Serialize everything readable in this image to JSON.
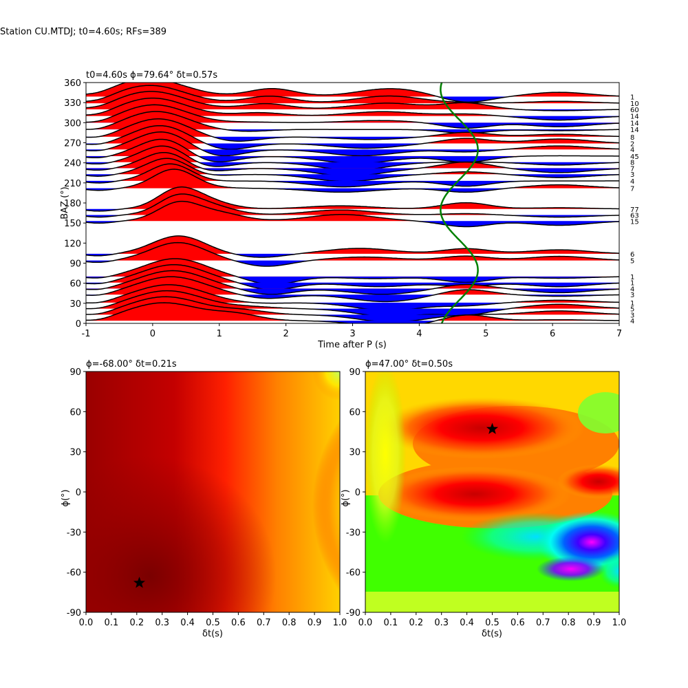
{
  "figure": {
    "suptitle": "Station CU.MTDJ; t0=4.60s; RFs=389"
  },
  "chart_data": [
    {
      "type": "line",
      "title": "t0=4.60s ϕ=79.64° δt=0.57s",
      "xlabel": "Time after P (s)",
      "ylabel": "BAZ (°)",
      "xlim": [
        -1,
        7
      ],
      "ylim": [
        0,
        360
      ],
      "xticks": [
        "-1",
        "0",
        "1",
        "2",
        "3",
        "4",
        "5",
        "6",
        "7"
      ],
      "yticks": [
        "0",
        "30",
        "60",
        "90",
        "120",
        "150",
        "180",
        "210",
        "240",
        "270",
        "300",
        "330",
        "360"
      ],
      "fill_positive_color": "#ff0000",
      "fill_negative_color": "#0000ff",
      "fitted_curve": {
        "color": "#008000",
        "description_t0": 4.6,
        "phi": 79.64,
        "dt": 0.57
      },
      "traces": [
        {
          "baz": 4,
          "count": "4"
        },
        {
          "baz": 13,
          "count": "3"
        },
        {
          "baz": 22,
          "count": "5"
        },
        {
          "baz": 31,
          "count": "1"
        },
        {
          "baz": 43,
          "count": "3"
        },
        {
          "baz": 52,
          "count": "4"
        },
        {
          "baz": 61,
          "count": "1"
        },
        {
          "baz": 70,
          "count": "1"
        },
        {
          "baz": 94,
          "count": "5"
        },
        {
          "baz": 104,
          "count": "6"
        },
        {
          "baz": 153,
          "count": "15"
        },
        {
          "baz": 162,
          "count": "63"
        },
        {
          "baz": 171,
          "count": "77"
        },
        {
          "baz": 202,
          "count": "7"
        },
        {
          "baz": 213,
          "count": "4"
        },
        {
          "baz": 223,
          "count": "3"
        },
        {
          "baz": 232,
          "count": "7"
        },
        {
          "baz": 241,
          "count": "8"
        },
        {
          "baz": 250,
          "count": "45"
        },
        {
          "baz": 260,
          "count": "4"
        },
        {
          "baz": 269,
          "count": "2"
        },
        {
          "baz": 279,
          "count": "8"
        },
        {
          "baz": 290,
          "count": "14"
        },
        {
          "baz": 300,
          "count": "14"
        },
        {
          "baz": 310,
          "count": "14"
        },
        {
          "baz": 320,
          "count": "60"
        },
        {
          "baz": 329,
          "count": "10"
        },
        {
          "baz": 339,
          "count": "1"
        }
      ]
    },
    {
      "type": "heatmap",
      "title": "ϕ=-68.00° δt=0.21s",
      "xlabel": "δt(s)",
      "ylabel": "ϕ(°)",
      "xlim": [
        0,
        1
      ],
      "ylim": [
        -90,
        90
      ],
      "xticks": [
        "0.0",
        "0.1",
        "0.2",
        "0.3",
        "0.4",
        "0.5",
        "0.6",
        "0.7",
        "0.8",
        "0.9",
        "1.0"
      ],
      "yticks": [
        "-90",
        "-60",
        "-30",
        "0",
        "30",
        "60",
        "90"
      ],
      "best": {
        "dt": 0.21,
        "phi": -68
      }
    },
    {
      "type": "heatmap",
      "title": "ϕ=47.00° δt=0.50s",
      "xlabel": "δt(s)",
      "ylabel": "ϕ(°)",
      "xlim": [
        0,
        1
      ],
      "ylim": [
        -90,
        90
      ],
      "xticks": [
        "0.0",
        "0.1",
        "0.2",
        "0.3",
        "0.4",
        "0.5",
        "0.6",
        "0.7",
        "0.8",
        "0.9",
        "1.0"
      ],
      "yticks": [
        "-90",
        "-60",
        "-30",
        "0",
        "30",
        "60",
        "90"
      ],
      "best": {
        "dt": 0.5,
        "phi": 47
      }
    }
  ]
}
